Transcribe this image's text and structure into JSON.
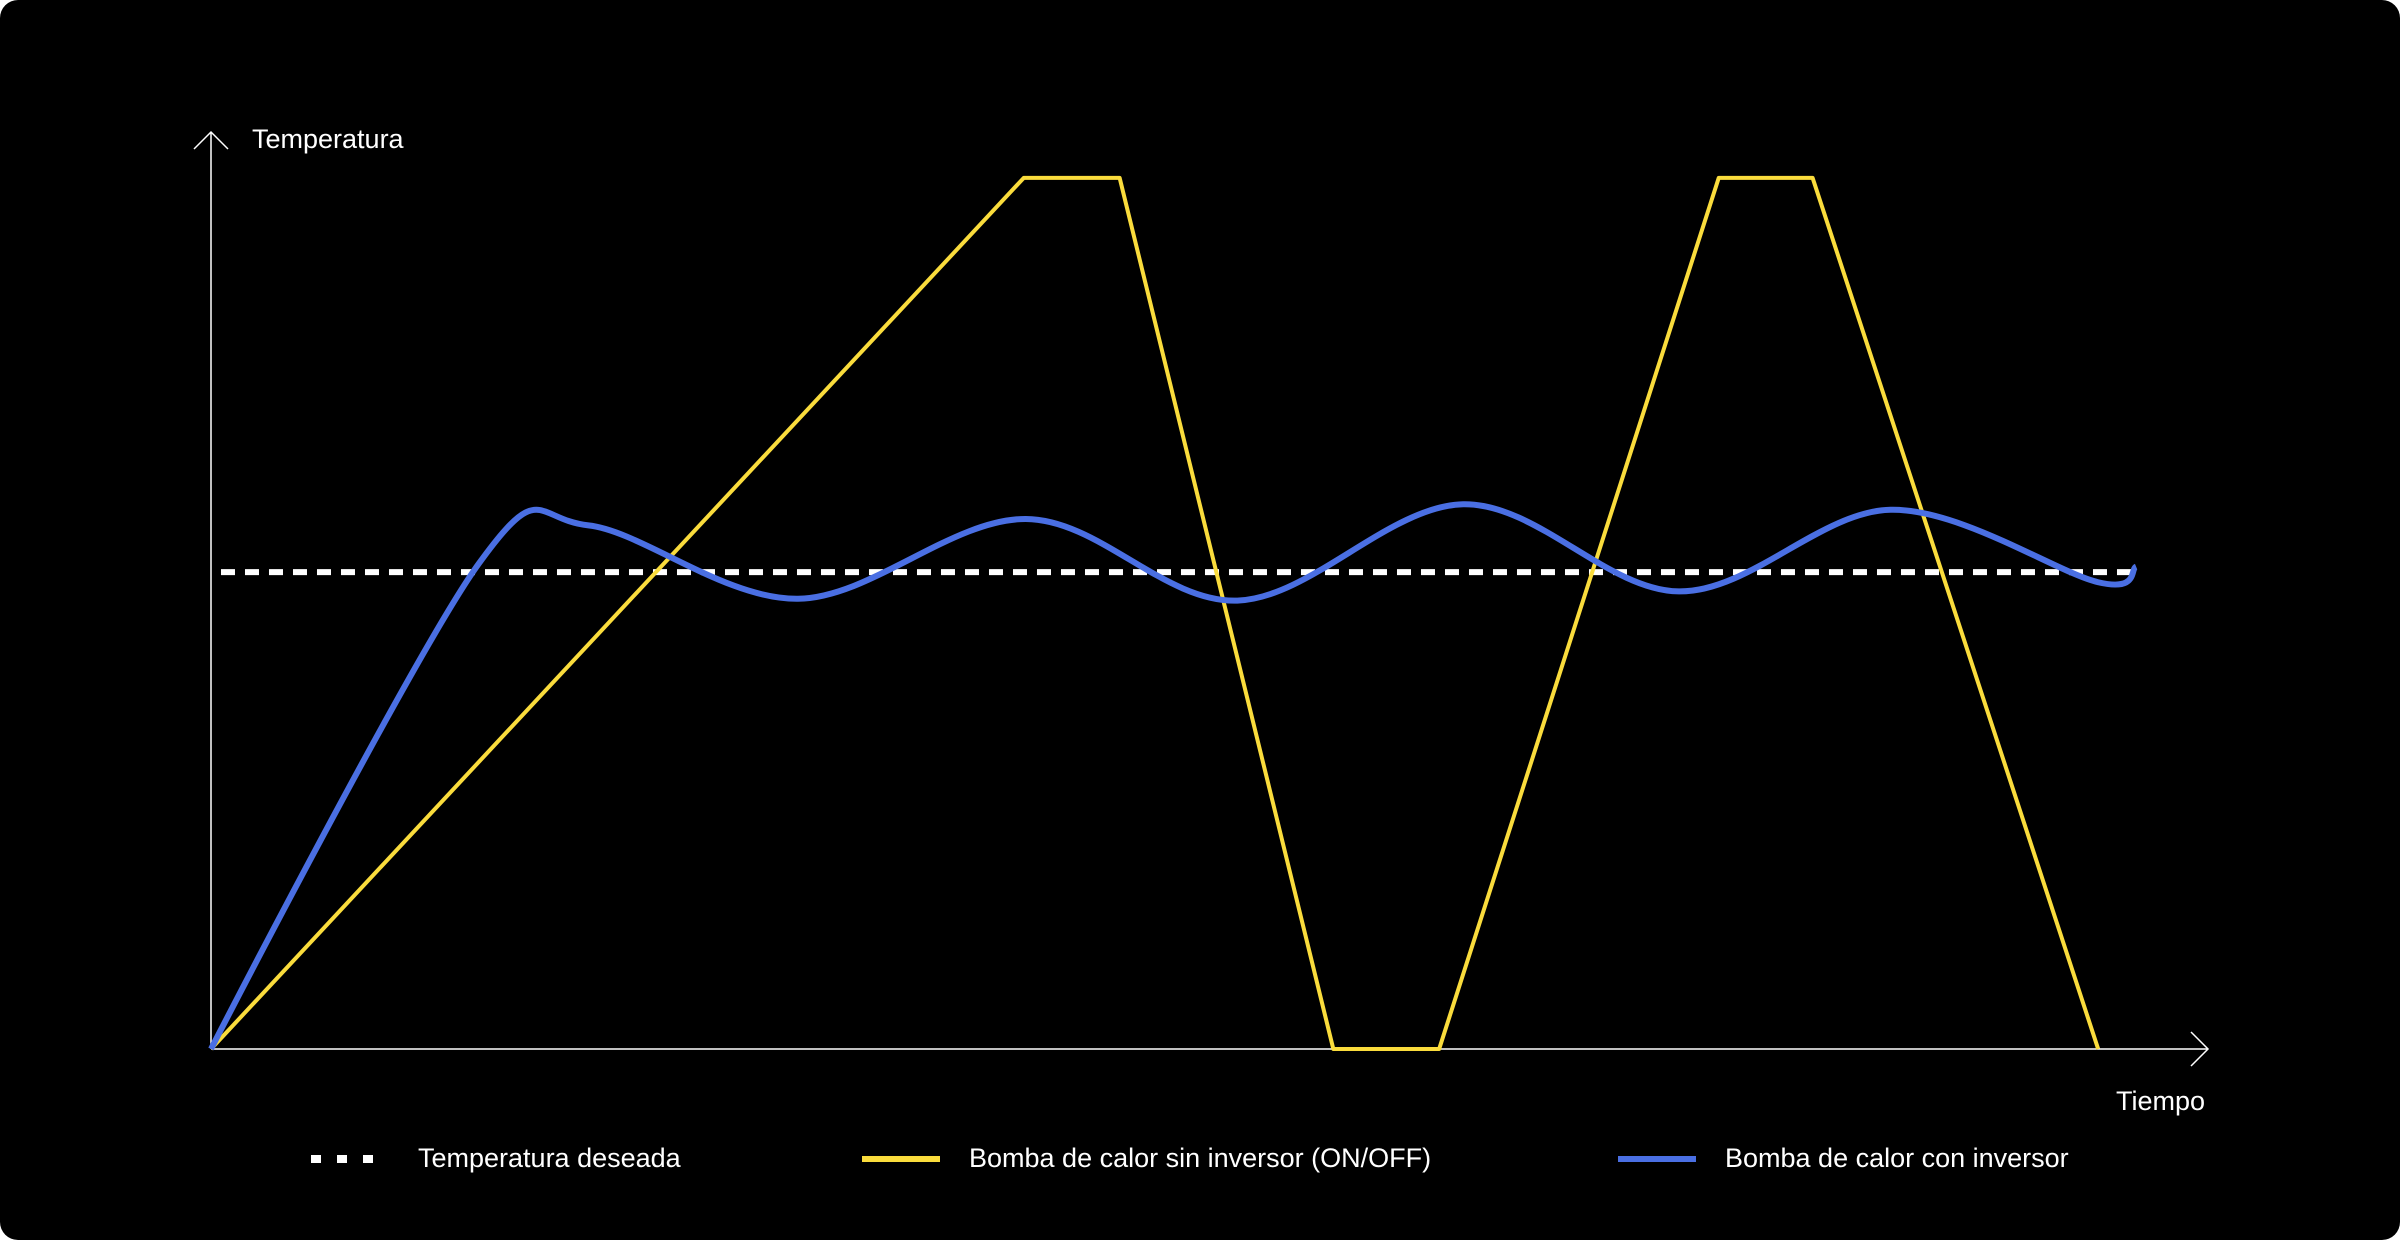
{
  "chart_data": {
    "type": "line",
    "x_label": "Tiempo",
    "y_label": "Temperatura",
    "xlim": [
      0,
      100
    ],
    "ylim": [
      0,
      100
    ],
    "series": [
      {
        "name": "Temperatura deseada",
        "color": "#ffffff",
        "dashed": true,
        "x": [
          0.5,
          96.6
        ],
        "values": [
          52,
          52
        ]
      },
      {
        "name": "Bomba de calor sin inversor (ON/OFF)",
        "color": "#fadc3c",
        "x": [
          0,
          40.7,
          45.5,
          56.2,
          61.5,
          75.5,
          80.2,
          94.5
        ],
        "values": [
          0,
          95,
          95,
          0,
          0,
          95,
          95,
          0
        ]
      },
      {
        "name": "Bomba de calor con inversor",
        "color": "#4a6fe3",
        "smooth": true,
        "x": [
          0,
          13.4,
          18.9,
          29.4,
          40.8,
          51.4,
          62.7,
          73.5,
          84.1,
          94.5,
          96.4
        ],
        "values": [
          0,
          52.9,
          57.1,
          49.1,
          57.8,
          48.9,
          59.4,
          49.9,
          58.8,
          50.9,
          52.6
        ]
      }
    ]
  }
}
